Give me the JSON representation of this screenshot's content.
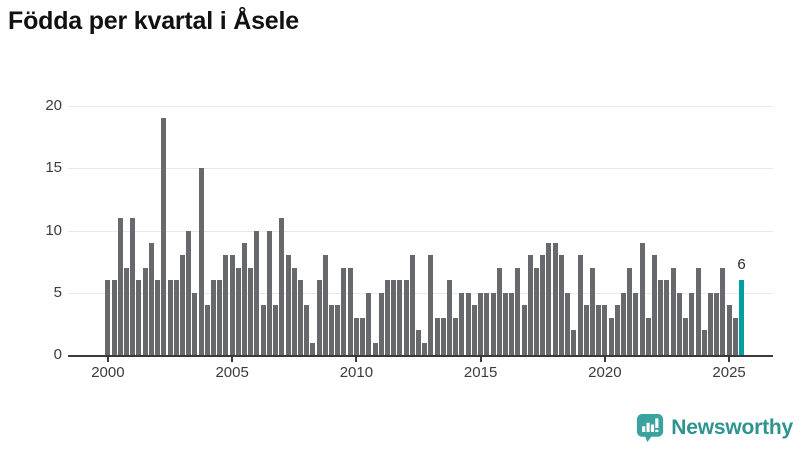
{
  "title": "Födda per kvartal i Åsele",
  "chart_data": {
    "type": "bar",
    "title": "Födda per kvartal i Åsele",
    "xlabel": "",
    "ylabel": "",
    "ylim": [
      0,
      20
    ],
    "y_ticks": [
      0,
      5,
      10,
      15,
      20
    ],
    "x_ticks": [
      "2000",
      "2005",
      "2010",
      "2015",
      "2020",
      "2025"
    ],
    "grid": "horizontal",
    "legend": "none",
    "bar_color": "#67696c",
    "highlight_color": "#00a0a0",
    "start_period": "2000 Q1",
    "end_period": "2025 Q3",
    "quarterly": [
      {
        "year": 2000,
        "values": [
          6,
          6,
          11,
          7
        ]
      },
      {
        "year": 2001,
        "values": [
          11,
          6,
          7,
          9
        ]
      },
      {
        "year": 2002,
        "values": [
          6,
          19,
          6,
          6
        ]
      },
      {
        "year": 2003,
        "values": [
          8,
          10,
          5,
          15
        ]
      },
      {
        "year": 2004,
        "values": [
          4,
          6,
          6,
          8
        ]
      },
      {
        "year": 2005,
        "values": [
          8,
          7,
          9,
          7
        ]
      },
      {
        "year": 2006,
        "values": [
          10,
          4,
          10,
          4
        ]
      },
      {
        "year": 2007,
        "values": [
          11,
          8,
          7,
          6
        ]
      },
      {
        "year": 2008,
        "values": [
          4,
          1,
          6,
          8
        ]
      },
      {
        "year": 2009,
        "values": [
          4,
          4,
          7,
          7
        ]
      },
      {
        "year": 2010,
        "values": [
          3,
          3,
          5,
          1
        ]
      },
      {
        "year": 2011,
        "values": [
          5,
          6,
          6,
          6
        ]
      },
      {
        "year": 2012,
        "values": [
          6,
          8,
          2,
          1
        ]
      },
      {
        "year": 2013,
        "values": [
          8,
          3,
          3,
          6
        ]
      },
      {
        "year": 2014,
        "values": [
          3,
          5,
          5,
          4
        ]
      },
      {
        "year": 2015,
        "values": [
          5,
          5,
          5,
          7
        ]
      },
      {
        "year": 2016,
        "values": [
          5,
          5,
          7,
          4
        ]
      },
      {
        "year": 2017,
        "values": [
          8,
          7,
          8,
          9
        ]
      },
      {
        "year": 2018,
        "values": [
          9,
          8,
          5,
          2
        ]
      },
      {
        "year": 2019,
        "values": [
          8,
          4,
          7,
          4
        ]
      },
      {
        "year": 2020,
        "values": [
          4,
          3,
          4,
          5
        ]
      },
      {
        "year": 2021,
        "values": [
          7,
          5,
          9,
          3
        ]
      },
      {
        "year": 2022,
        "values": [
          8,
          6,
          6,
          7
        ]
      },
      {
        "year": 2023,
        "values": [
          5,
          3,
          5,
          7
        ]
      },
      {
        "year": 2024,
        "values": [
          2,
          5,
          5,
          7
        ]
      },
      {
        "year": 2025,
        "values": [
          4,
          3,
          6
        ]
      }
    ],
    "highlight": {
      "period": "2025 Q3",
      "value": 6,
      "label": "6"
    }
  },
  "logo": {
    "text": "Newsworthy",
    "icon": "newsworthy-speech-bubble-bar-chart-icon",
    "text_color": "#2e948f",
    "icon_color": "#3aa39f"
  }
}
